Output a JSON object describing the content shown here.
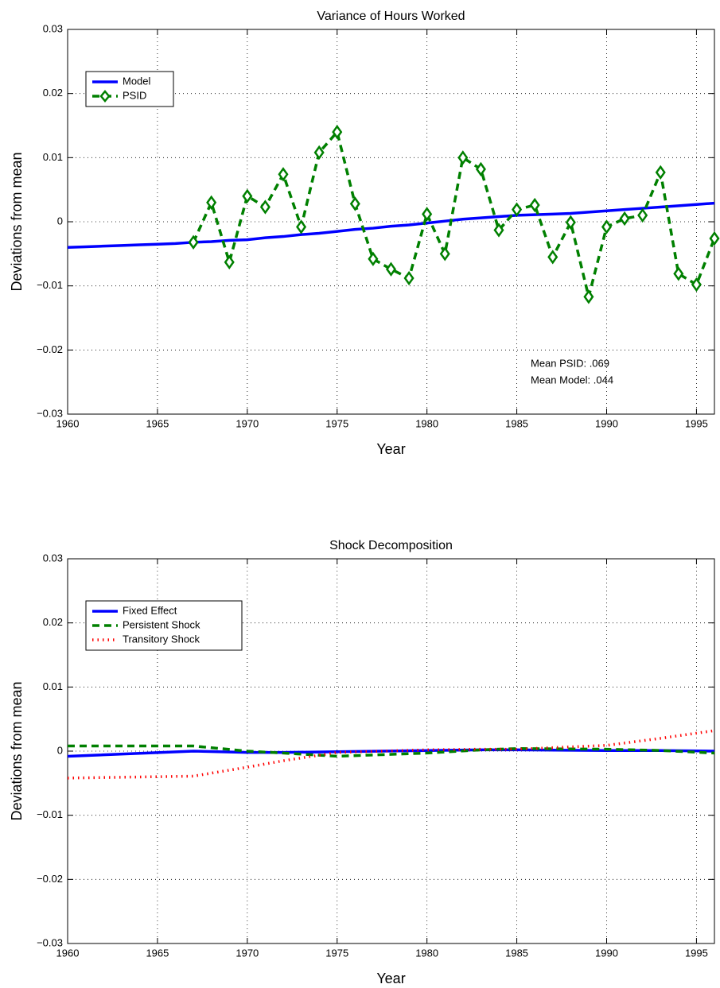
{
  "chart_data": [
    {
      "type": "line",
      "title": "Variance of Hours Worked",
      "xlabel": "Year",
      "ylabel": "Deviations from mean",
      "x": [
        1960,
        1961,
        1962,
        1963,
        1964,
        1965,
        1966,
        1967,
        1968,
        1969,
        1970,
        1971,
        1972,
        1973,
        1974,
        1975,
        1976,
        1977,
        1978,
        1979,
        1980,
        1981,
        1982,
        1983,
        1984,
        1985,
        1986,
        1987,
        1988,
        1989,
        1990,
        1991,
        1992,
        1993,
        1994,
        1995,
        1996
      ],
      "series": [
        {
          "name": "Model",
          "color": "#0000ff",
          "style": "solid",
          "values": [
            -0.004,
            -0.0039,
            -0.0038,
            -0.0037,
            -0.0036,
            -0.0035,
            -0.0034,
            -0.0032,
            -0.0031,
            -0.0029,
            -0.0028,
            -0.0025,
            -0.0023,
            -0.002,
            -0.0018,
            -0.0015,
            -0.0012,
            -0.001,
            -0.0007,
            -0.0005,
            -0.0002,
            0.0001,
            0.0004,
            0.0006,
            0.0008,
            0.001,
            0.0011,
            0.0012,
            0.0013,
            0.0015,
            0.0017,
            0.0019,
            0.0021,
            0.0023,
            0.0025,
            0.0027,
            0.0029
          ]
        },
        {
          "name": "PSID",
          "color": "#008000",
          "style": "dashed",
          "marker": "diamond",
          "values": [
            null,
            null,
            null,
            null,
            null,
            null,
            null,
            -0.0032,
            0.003,
            -0.0063,
            0.004,
            0.0023,
            0.0074,
            -0.0008,
            0.0108,
            0.014,
            0.0028,
            -0.0058,
            -0.0074,
            -0.0088,
            0.0012,
            -0.005,
            0.01,
            0.0082,
            -0.0013,
            0.0019,
            0.0026,
            -0.0055,
            -0.0001,
            -0.0117,
            -0.0008,
            0.0005,
            0.001,
            0.0077,
            -0.0081,
            -0.0098,
            -0.0026
          ]
        }
      ],
      "annotations": [
        "Mean PSID: .069",
        "Mean Model: .044"
      ],
      "xlim": [
        1960,
        1996
      ],
      "xticks": [
        1960,
        1965,
        1970,
        1975,
        1980,
        1985,
        1990,
        1995
      ],
      "ylim": [
        -0.03,
        0.03
      ],
      "yticks": [
        {
          "value": -0.03,
          "label": "−0.03"
        },
        {
          "value": -0.02,
          "label": "−0.02"
        },
        {
          "value": -0.01,
          "label": "−0.01"
        },
        0,
        0.01,
        0.02,
        0.03
      ],
      "grid": true,
      "legend": "upper left"
    },
    {
      "type": "line",
      "title": "Shock Decomposition",
      "xlabel": "Year",
      "ylabel": "Deviations from mean",
      "x": [
        1960,
        1967,
        1970,
        1972,
        1975,
        1980,
        1983,
        1985,
        1990,
        1993,
        1996
      ],
      "series": [
        {
          "name": "Fixed Effect",
          "color": "#0000ff",
          "style": "solid",
          "values": [
            -0.0008,
            0,
            -0.0002,
            -0.0002,
            -0.0001,
            0.0001,
            0.0002,
            0.0002,
            0.0001,
            0.0001,
            0
          ]
        },
        {
          "name": "Persistent Shock",
          "color": "#008000",
          "style": "dashed",
          "values": [
            0.0008,
            0.0008,
            0,
            -0.0003,
            -0.0008,
            -0.0003,
            0.0002,
            0.0004,
            0.0003,
            0.0001,
            -0.0003
          ]
        },
        {
          "name": "Transitory Shock",
          "color": "#ff0000",
          "style": "dotted",
          "values": [
            -0.0042,
            -0.0039,
            -0.0025,
            -0.0015,
            -0.0002,
            0.0002,
            0.0003,
            0.0003,
            0.0009,
            0.002,
            0.0032
          ]
        }
      ],
      "xlim": [
        1960,
        1996
      ],
      "xticks": [
        1960,
        1965,
        1970,
        1975,
        1980,
        1985,
        1990,
        1995
      ],
      "ylim": [
        -0.03,
        0.03
      ],
      "yticks": [
        {
          "value": -0.03,
          "label": "−0.03"
        },
        {
          "value": -0.02,
          "label": "−0.02"
        },
        {
          "value": -0.01,
          "label": "−0.01"
        },
        0,
        0.01,
        0.02,
        0.03
      ],
      "grid": true,
      "legend": "upper left"
    }
  ]
}
